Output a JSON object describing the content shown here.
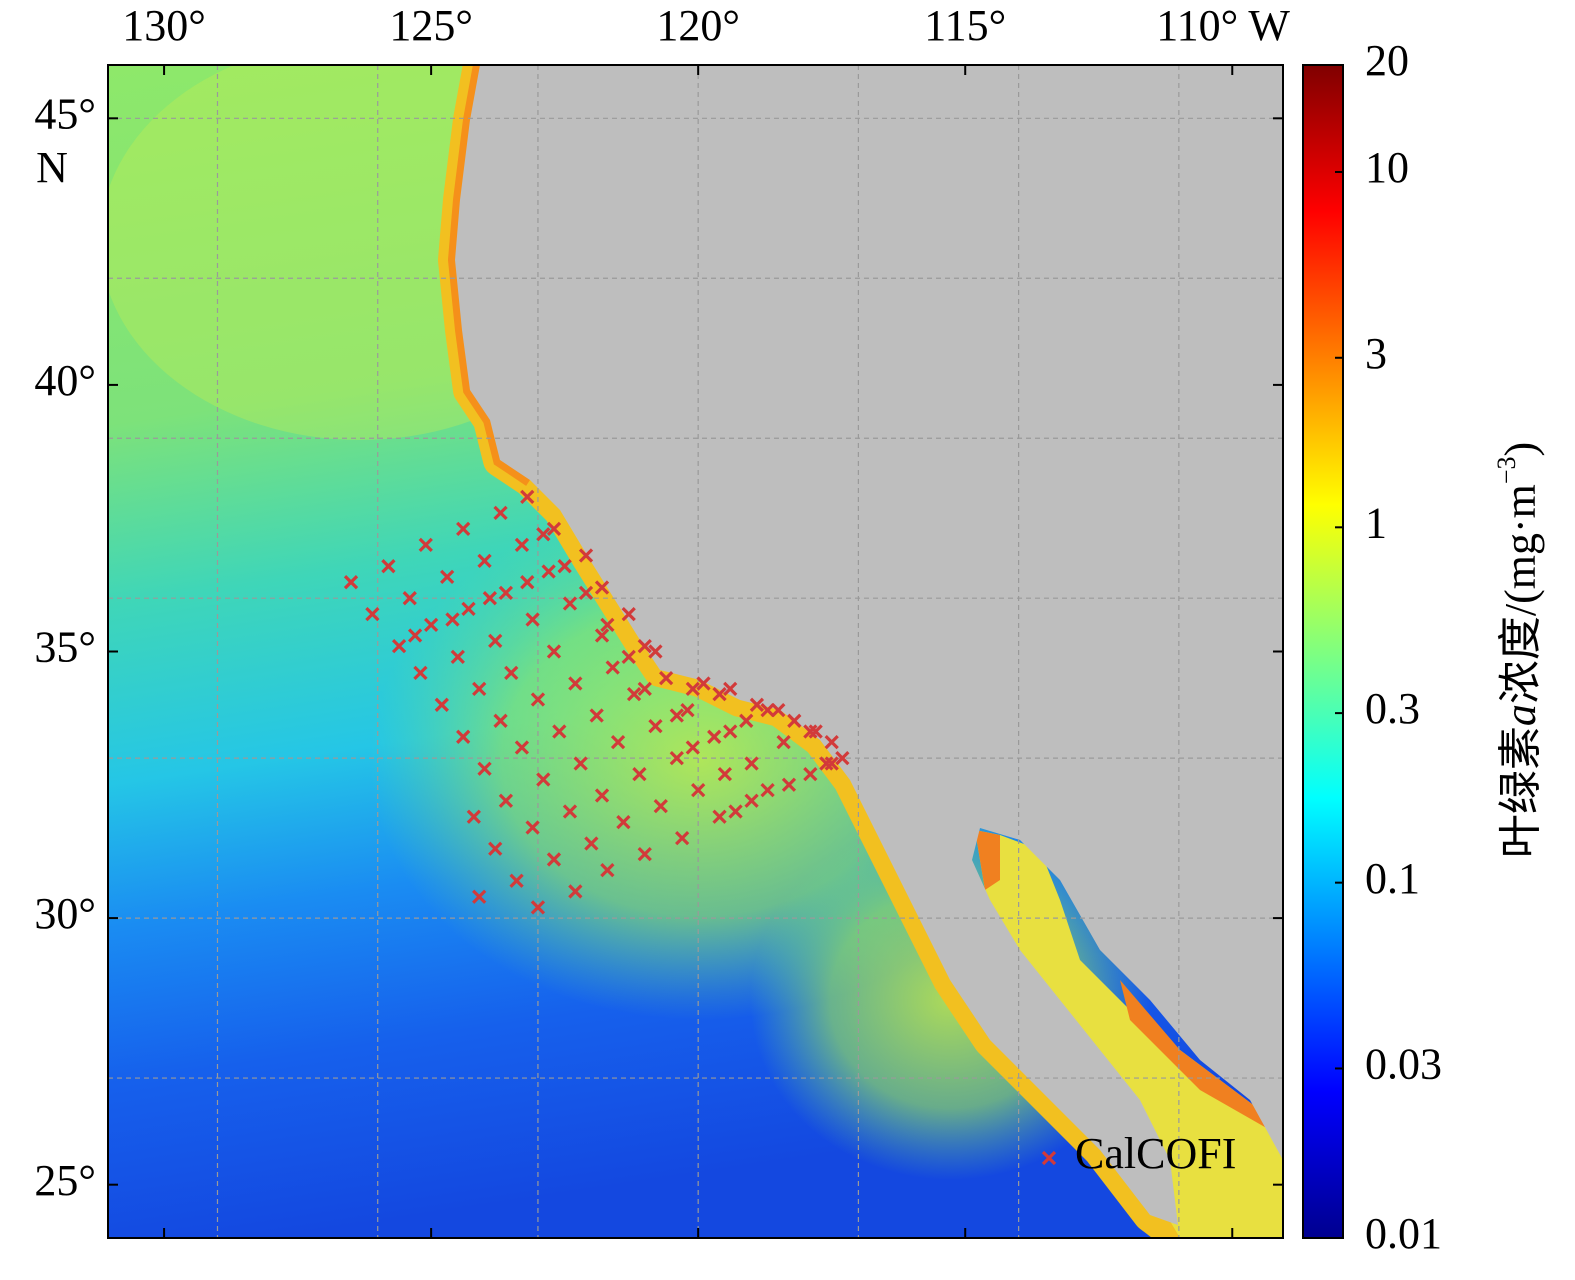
{
  "chart_data": {
    "type": "map",
    "xlim": [
      131.05,
      109.05
    ],
    "ylim": [
      24.0,
      46.0
    ],
    "xticks": [
      {
        "value": 130,
        "label": "130°"
      },
      {
        "value": 125,
        "label": "125°"
      },
      {
        "value": 120,
        "label": "120°"
      },
      {
        "value": 115,
        "label": "115°"
      },
      {
        "value": 110,
        "label": "110° W"
      }
    ],
    "yticks": [
      {
        "value": 45,
        "label": "45°"
      },
      {
        "value": 40,
        "label": "40°"
      },
      {
        "value": 35,
        "label": "35°"
      },
      {
        "value": 30,
        "label": "30°"
      },
      {
        "value": 25,
        "label": "25°"
      }
    ],
    "y_hemisphere": "N",
    "xgrid": [
      129,
      126,
      123,
      120,
      117,
      114,
      111
    ],
    "ygrid": [
      45,
      42,
      39,
      36,
      33,
      30,
      27
    ],
    "grid": true,
    "legend": "lower right",
    "series": [
      {
        "name": "CalCOFI",
        "color": "#d23a3a",
        "x": [
          126.5,
          126.1,
          125.8,
          125.6,
          125.4,
          125.3,
          125.2,
          125.1,
          125.0,
          124.8,
          124.7,
          124.6,
          124.5,
          124.4,
          124.4,
          124.3,
          124.2,
          124.1,
          124.1,
          124.0,
          124.0,
          123.9,
          123.8,
          123.8,
          123.7,
          123.7,
          123.6,
          123.6,
          123.5,
          123.4,
          123.3,
          123.3,
          123.2,
          123.1,
          123.1,
          123.0,
          123.0,
          122.9,
          122.9,
          122.8,
          122.7,
          122.7,
          122.7,
          122.6,
          122.5,
          122.4,
          122.4,
          122.3,
          122.3,
          122.2,
          122.1,
          122.1,
          122.0,
          121.9,
          121.8,
          121.8,
          121.8,
          121.7,
          121.7,
          121.6,
          121.5,
          121.4,
          121.3,
          121.3,
          121.2,
          121.1,
          121.0,
          121.0,
          121.0,
          120.8,
          120.8,
          120.7,
          120.6,
          120.4,
          120.4,
          120.3,
          120.2,
          120.1,
          120.1,
          120.0,
          119.9,
          119.7,
          119.6,
          119.6,
          119.5,
          119.4,
          119.4,
          119.3,
          119.1,
          119.0,
          119.0,
          118.9,
          118.7,
          118.7,
          118.5,
          118.4,
          118.3,
          118.2,
          117.9,
          117.9,
          117.8,
          117.6,
          117.5,
          117.5,
          117.3,
          123.2
        ],
        "y": [
          36.3,
          35.7,
          36.6,
          35.1,
          36.0,
          35.3,
          34.6,
          37.0,
          35.5,
          34.0,
          36.4,
          35.6,
          34.9,
          37.3,
          33.4,
          35.8,
          31.9,
          34.3,
          30.4,
          36.7,
          32.8,
          36.0,
          35.2,
          31.3,
          33.7,
          37.6,
          36.1,
          32.2,
          34.6,
          30.7,
          37.0,
          33.2,
          36.3,
          31.7,
          35.6,
          34.1,
          30.2,
          32.6,
          37.2,
          36.5,
          35.0,
          31.1,
          37.3,
          33.5,
          36.6,
          32.0,
          35.9,
          34.4,
          30.5,
          32.9,
          36.8,
          36.1,
          31.4,
          33.8,
          35.3,
          32.3,
          36.2,
          35.5,
          30.9,
          34.7,
          33.3,
          31.8,
          35.7,
          34.9,
          34.2,
          32.7,
          35.1,
          31.2,
          34.3,
          33.6,
          35.0,
          32.1,
          34.5,
          33.0,
          33.8,
          31.5,
          33.9,
          34.3,
          33.2,
          32.4,
          34.4,
          33.4,
          31.9,
          34.2,
          32.7,
          34.3,
          33.5,
          32.0,
          33.7,
          32.9,
          32.2,
          34.0,
          33.9,
          32.4,
          33.9,
          33.3,
          32.5,
          33.7,
          32.7,
          33.5,
          33.5,
          32.9,
          33.3,
          32.9,
          33.0,
          37.9
        ]
      }
    ],
    "colorbar": {
      "scale": "log",
      "colormap": "jet",
      "lim": [
        0.01,
        20
      ],
      "ticks": [
        0.01,
        0.03,
        0.1,
        0.3,
        1,
        3,
        10,
        20
      ],
      "title": {
        "prefix": "叶绿素",
        "italic": "a",
        "suffix": "浓度/(mg·m",
        "superscript": "−3",
        "close": ")"
      }
    }
  }
}
